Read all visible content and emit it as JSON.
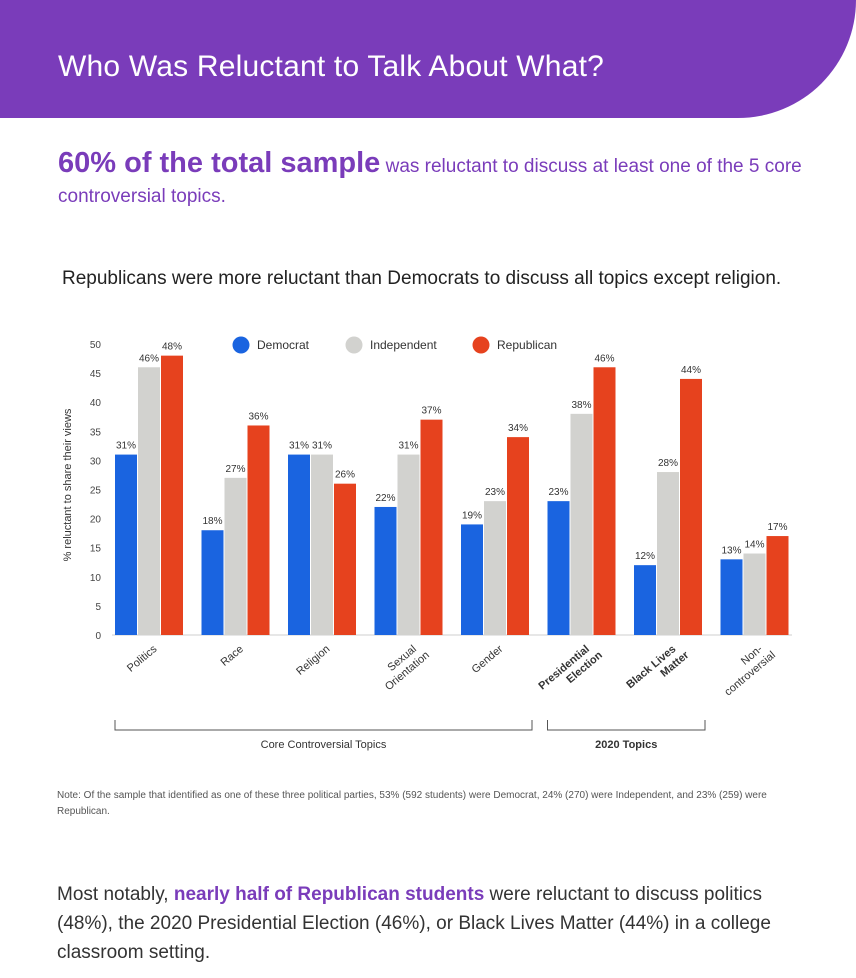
{
  "header": {
    "title": "Who Was Reluctant to Talk About What?"
  },
  "headline": {
    "big": "60% of the total sample",
    "rest": " was reluctant to discuss at least one of the 5 core controversial topics."
  },
  "subhead": "Republicans were more reluctant than Democrats to discuss all topics except religion.",
  "chart_data": {
    "type": "bar",
    "ylabel": "% reluctant to share their views",
    "ylim": [
      0,
      50
    ],
    "yticks": [
      0,
      5,
      10,
      15,
      20,
      25,
      30,
      35,
      40,
      45,
      50
    ],
    "grid": false,
    "legend_position": "top",
    "categories": [
      "Politics",
      "Race",
      "Religion",
      "Sexual Orientation",
      "Gender",
      "Presidential Election",
      "Black Lives Matter",
      "Non-controversial"
    ],
    "category_bold": [
      false,
      false,
      false,
      false,
      false,
      true,
      true,
      false
    ],
    "series": [
      {
        "name": "Democrat",
        "color": "#1a64e0",
        "values": [
          31,
          18,
          31,
          22,
          19,
          23,
          12,
          13
        ]
      },
      {
        "name": "Independent",
        "color": "#d2d2cf",
        "values": [
          46,
          27,
          31,
          31,
          23,
          38,
          28,
          14
        ]
      },
      {
        "name": "Republican",
        "color": "#e6421e",
        "values": [
          48,
          36,
          26,
          37,
          34,
          46,
          44,
          17
        ]
      }
    ],
    "groups": [
      {
        "label": "Core Controversial Topics",
        "bold": false,
        "from": 0,
        "to": 4
      },
      {
        "label": "2020 Topics",
        "bold": true,
        "from": 5,
        "to": 6
      }
    ]
  },
  "note": "Note: Of the sample that identified as one of these three political parties, 53% (592 students) were Democrat, 24% (270) were Independent, and 23% (259) were Republican.",
  "closing": {
    "lead": "Most notably, ",
    "highlight": "nearly half of Republican students",
    "rest": " were reluctant to discuss politics (48%), the 2020 Presidential Election (46%), or Black Lives Matter (44%) in a college classroom setting."
  }
}
